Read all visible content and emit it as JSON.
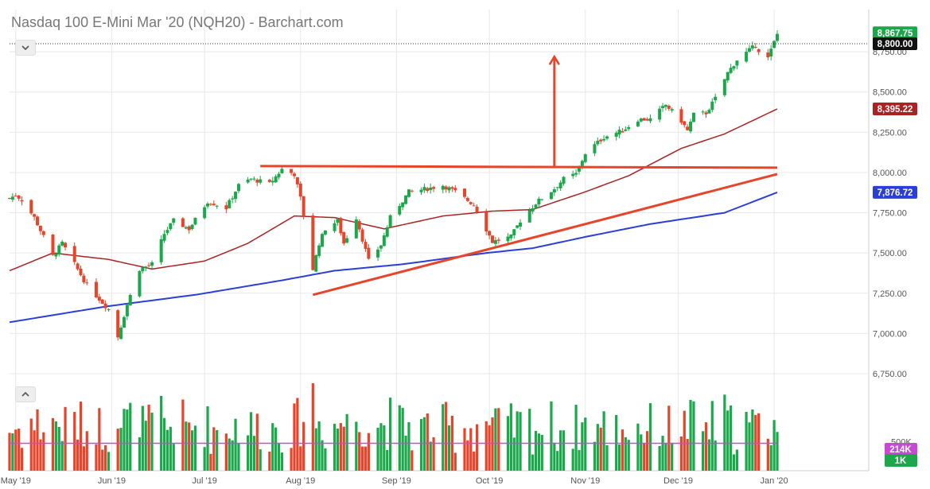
{
  "header": {
    "title": "Nasdaq 100 E-Mini Mar '20 (NQH20) - Barchart.com"
  },
  "colors": {
    "up": "#1aa84a",
    "down": "#e8442a",
    "ma_short": "#aa2222",
    "ma_long": "#2a3fd6",
    "annotation": "#e8442a",
    "volume_ma": "#c64ad6",
    "grid": "#e8e8e8",
    "axis_text": "#555555"
  },
  "icons": [
    "chevron-down-icon",
    "chevron-up-icon"
  ],
  "chart_data": {
    "type": "candlestick",
    "title": "Nasdaq 100 E-Mini Mar '20 (NQH20) - Barchart.com",
    "x_ticks": [
      "May '19",
      "Jun '19",
      "Jul '19",
      "Aug '19",
      "Sep '19",
      "Oct '19",
      "Nov '19",
      "Dec '19",
      "Jan '20"
    ],
    "y_ticks": [
      "8,750.00",
      "8,500.00",
      "8,250.00",
      "8,000.00",
      "7,750.00",
      "7,500.00",
      "7,250.00",
      "7,000.00",
      "6,750.00"
    ],
    "ylim": [
      6750,
      8900
    ],
    "price_labels": [
      {
        "text": "8,867.75",
        "value": 8867.75,
        "style": "up"
      },
      {
        "text": "8,800.00",
        "value": 8800,
        "style": "dark"
      },
      {
        "text": "8,395.22",
        "value": 8395.22,
        "style": "ma_short"
      },
      {
        "text": "7,876.72",
        "value": 7876.72,
        "style": "ma_long"
      }
    ],
    "volume": {
      "y_ticks": [
        "500K"
      ],
      "labels": [
        {
          "text": "214K",
          "style": "volume_ma"
        },
        {
          "text": "1K",
          "style": "up"
        }
      ]
    },
    "anchor_points": [
      [
        "2019-04-29",
        7840
      ],
      [
        "2019-05-01",
        7860
      ],
      [
        "2019-05-03",
        7830
      ],
      [
        "2019-05-07",
        7720
      ],
      [
        "2019-05-13",
        7480
      ],
      [
        "2019-05-16",
        7560
      ],
      [
        "2019-05-20",
        7430
      ],
      [
        "2019-05-24",
        7300
      ],
      [
        "2019-05-31",
        7150
      ],
      [
        "2019-06-03",
        6980
      ],
      [
        "2019-06-06",
        7180
      ],
      [
        "2019-06-10",
        7400
      ],
      [
        "2019-06-14",
        7430
      ],
      [
        "2019-06-18",
        7620
      ],
      [
        "2019-06-21",
        7700
      ],
      [
        "2019-06-26",
        7650
      ],
      [
        "2019-07-02",
        7820
      ],
      [
        "2019-07-08",
        7780
      ],
      [
        "2019-07-12",
        7920
      ],
      [
        "2019-07-16",
        7960
      ],
      [
        "2019-07-22",
        7930
      ],
      [
        "2019-07-26",
        8020
      ],
      [
        "2019-07-30",
        7990
      ],
      [
        "2019-08-01",
        7840
      ],
      [
        "2019-08-05",
        7400
      ],
      [
        "2019-08-07",
        7560
      ],
      [
        "2019-08-09",
        7650
      ],
      [
        "2019-08-13",
        7700
      ],
      [
        "2019-08-15",
        7560
      ],
      [
        "2019-08-19",
        7720
      ],
      [
        "2019-08-23",
        7450
      ],
      [
        "2019-08-27",
        7550
      ],
      [
        "2019-08-30",
        7720
      ],
      [
        "2019-09-05",
        7880
      ],
      [
        "2019-09-11",
        7900
      ],
      [
        "2019-09-16",
        7920
      ],
      [
        "2019-09-20",
        7880
      ],
      [
        "2019-09-26",
        7800
      ],
      [
        "2019-10-02",
        7570
      ],
      [
        "2019-10-08",
        7600
      ],
      [
        "2019-10-11",
        7700
      ],
      [
        "2019-10-16",
        7810
      ],
      [
        "2019-10-22",
        7900
      ],
      [
        "2019-10-25",
        7960
      ],
      [
        "2019-10-29",
        7990
      ],
      [
        "2019-11-01",
        8120
      ],
      [
        "2019-11-07",
        8220
      ],
      [
        "2019-11-13",
        8260
      ],
      [
        "2019-11-18",
        8330
      ],
      [
        "2019-11-22",
        8330
      ],
      [
        "2019-11-27",
        8420
      ],
      [
        "2019-12-02",
        8320
      ],
      [
        "2019-12-04",
        8260
      ],
      [
        "2019-12-06",
        8360
      ],
      [
        "2019-12-10",
        8370
      ],
      [
        "2019-12-13",
        8460
      ],
      [
        "2019-12-17",
        8620
      ],
      [
        "2019-12-20",
        8700
      ],
      [
        "2019-12-26",
        8790
      ],
      [
        "2019-12-27",
        8760
      ],
      [
        "2019-12-30",
        8710
      ],
      [
        "2020-01-02",
        8860
      ]
    ],
    "moving_averages": [
      {
        "name": "ma_short",
        "points": [
          [
            "2019-04-29",
            7390
          ],
          [
            "2019-05-13",
            7500
          ],
          [
            "2019-05-31",
            7460
          ],
          [
            "2019-06-14",
            7400
          ],
          [
            "2019-07-01",
            7450
          ],
          [
            "2019-07-15",
            7560
          ],
          [
            "2019-07-30",
            7730
          ],
          [
            "2019-08-12",
            7720
          ],
          [
            "2019-08-28",
            7650
          ],
          [
            "2019-09-16",
            7730
          ],
          [
            "2019-10-02",
            7760
          ],
          [
            "2019-10-15",
            7770
          ],
          [
            "2019-11-01",
            7880
          ],
          [
            "2019-11-15",
            7980
          ],
          [
            "2019-12-02",
            8150
          ],
          [
            "2019-12-16",
            8240
          ],
          [
            "2020-01-02",
            8395
          ]
        ]
      },
      {
        "name": "ma_long",
        "points": [
          [
            "2019-04-29",
            7070
          ],
          [
            "2019-05-31",
            7170
          ],
          [
            "2019-06-28",
            7240
          ],
          [
            "2019-07-26",
            7330
          ],
          [
            "2019-08-12",
            7390
          ],
          [
            "2019-09-03",
            7430
          ],
          [
            "2019-09-30",
            7500
          ],
          [
            "2019-10-15",
            7530
          ],
          [
            "2019-11-01",
            7600
          ],
          [
            "2019-11-22",
            7680
          ],
          [
            "2019-12-16",
            7750
          ],
          [
            "2020-01-02",
            7877
          ]
        ]
      }
    ],
    "annotations": [
      {
        "name": "resistance-line",
        "from": [
          "2019-07-19",
          8040
        ],
        "to": [
          "2020-01-02",
          8030
        ]
      },
      {
        "name": "support-trendline",
        "from": [
          "2019-08-05",
          7240
        ],
        "to": [
          "2020-01-02",
          7990
        ]
      },
      {
        "name": "target-arrow",
        "from": [
          "2019-10-22",
          8040
        ],
        "to": [
          "2019-10-22",
          8720
        ]
      }
    ],
    "grid": true
  }
}
